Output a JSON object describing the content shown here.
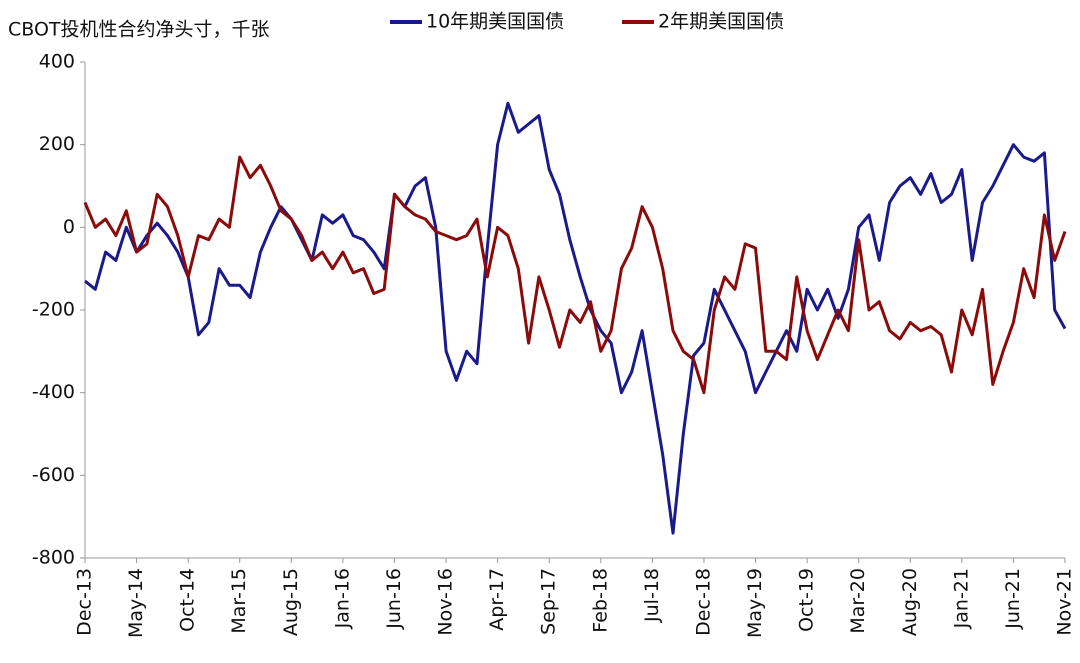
{
  "chart_data": {
    "type": "line",
    "title": "CBOT投机性合约净头寸，千张",
    "categories": [
      "Dec-13",
      null,
      null,
      null,
      null,
      "May-14",
      null,
      null,
      null,
      null,
      "Oct-14",
      null,
      null,
      null,
      null,
      "Mar-15",
      null,
      null,
      null,
      null,
      "Aug-15",
      null,
      null,
      null,
      null,
      "Jan-16",
      null,
      null,
      null,
      null,
      "Jun-16",
      null,
      null,
      null,
      null,
      "Nov-16",
      null,
      null,
      null,
      null,
      "Apr-17",
      null,
      null,
      null,
      null,
      "Sep-17",
      null,
      null,
      null,
      null,
      "Feb-18",
      null,
      null,
      null,
      null,
      "Jul-18",
      null,
      null,
      null,
      null,
      "Dec-18",
      null,
      null,
      null,
      null,
      "May-19",
      null,
      null,
      null,
      null,
      "Oct-19",
      null,
      null,
      null,
      null,
      "Mar-20",
      null,
      null,
      null,
      null,
      "Aug-20",
      null,
      null,
      null,
      null,
      "Jan-21",
      null,
      null,
      null,
      null,
      "Jun-21",
      null,
      null,
      null,
      null,
      "Nov-21"
    ],
    "series": [
      {
        "name": "10年期美国国债",
        "color": "#1a1a8c",
        "values": [
          -130,
          -150,
          -60,
          -80,
          0,
          -60,
          -20,
          10,
          -20,
          -60,
          -120,
          -260,
          -230,
          -100,
          -140,
          -140,
          -170,
          -60,
          0,
          50,
          20,
          -30,
          -80,
          30,
          10,
          30,
          -20,
          -30,
          -60,
          -100,
          80,
          50,
          100,
          120,
          0,
          -300,
          -370,
          -300,
          -330,
          -50,
          200,
          300,
          230,
          250,
          270,
          140,
          80,
          -30,
          -120,
          -200,
          -250,
          -280,
          -400,
          -350,
          -250,
          -400,
          -550,
          -740,
          -500,
          -310,
          -280,
          -150,
          -200,
          -250,
          -300,
          -400,
          -350,
          -300,
          -250,
          -300,
          -150,
          -200,
          -150,
          -220,
          -150,
          0,
          30,
          -80,
          60,
          100,
          120,
          80,
          130,
          60,
          80,
          140,
          -80,
          60,
          100,
          150,
          200,
          170,
          160,
          180,
          -200,
          -245
        ]
      },
      {
        "name": "2年期美国国债",
        "color": "#8b0a0a",
        "values": [
          60,
          0,
          20,
          -20,
          40,
          -60,
          -40,
          80,
          50,
          -20,
          -120,
          -20,
          -30,
          20,
          0,
          170,
          120,
          150,
          100,
          40,
          20,
          -20,
          -80,
          -60,
          -100,
          -60,
          -110,
          -100,
          -160,
          -150,
          80,
          50,
          30,
          20,
          -10,
          -20,
          -30,
          -20,
          20,
          -120,
          0,
          -20,
          -100,
          -280,
          -120,
          -200,
          -290,
          -200,
          -230,
          -180,
          -300,
          -250,
          -100,
          -50,
          50,
          0,
          -100,
          -250,
          -300,
          -320,
          -400,
          -200,
          -120,
          -150,
          -40,
          -50,
          -300,
          -300,
          -320,
          -120,
          -250,
          -320,
          -260,
          -200,
          -250,
          -30,
          -200,
          -180,
          -250,
          -270,
          -230,
          -250,
          -240,
          -260,
          -350,
          -200,
          -260,
          -150,
          -380,
          -300,
          -230,
          -100,
          -170,
          30,
          -80,
          -10
        ]
      }
    ],
    "ylim": [
      -800,
      400
    ],
    "yticks": [
      -800,
      -600,
      -400,
      -200,
      0,
      200,
      400
    ]
  }
}
